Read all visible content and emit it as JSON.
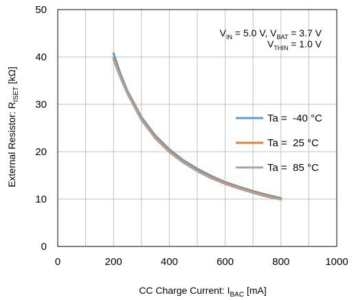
{
  "chart_data": {
    "type": "line",
    "xlabel": {
      "prefix": "CC Charge Current: I",
      "sub": "BAC",
      "suffix": " [mA]"
    },
    "ylabel": {
      "prefix": "External Resistor: R",
      "sub": "ISET",
      "suffix": " [kΩ]"
    },
    "xlim": [
      0,
      1000
    ],
    "ylim": [
      0,
      50
    ],
    "xticks": [
      0,
      200,
      400,
      600,
      800,
      1000
    ],
    "yticks": [
      0,
      10,
      20,
      30,
      40,
      50
    ],
    "x_minor_step": 100,
    "grid": true,
    "legend_position": "right",
    "conditions": [
      [
        {
          "t": "V",
          "sub": "IN",
          "after": " = 5.0 V, "
        },
        {
          "t": "V",
          "sub": "BAT",
          "after": " = 3.7 V"
        }
      ],
      [
        {
          "t": "V",
          "sub": "THIN",
          "after": " = 1.0 V"
        }
      ]
    ],
    "series": [
      {
        "name": "Ta =  -40 °C",
        "color": "#5B9BD5",
        "x": [
          200,
          225,
          250,
          300,
          350,
          400,
          450,
          500,
          550,
          600,
          650,
          700,
          750,
          800
        ],
        "y": [
          40.8,
          36.4,
          32.8,
          27.3,
          23.4,
          20.5,
          18.2,
          16.4,
          14.9,
          13.6,
          12.6,
          11.7,
          10.9,
          10.2
        ]
      },
      {
        "name": "Ta =  25 °C",
        "color": "#ED7D31",
        "x": [
          200,
          225,
          250,
          300,
          350,
          400,
          450,
          500,
          550,
          600,
          650,
          700,
          750,
          800
        ],
        "y": [
          39.8,
          36.0,
          32.5,
          27.0,
          23.1,
          20.2,
          17.9,
          16.1,
          14.6,
          13.4,
          12.4,
          11.5,
          10.7,
          10.0
        ]
      },
      {
        "name": "Ta =  85 °C",
        "color": "#A5A5A5",
        "x": [
          200,
          225,
          250,
          300,
          350,
          400,
          450,
          500,
          550,
          600,
          650,
          700,
          750,
          800
        ],
        "y": [
          39.4,
          35.6,
          32.2,
          26.7,
          22.8,
          19.9,
          17.7,
          15.9,
          14.4,
          13.2,
          12.2,
          11.3,
          10.5,
          9.9
        ]
      }
    ]
  }
}
